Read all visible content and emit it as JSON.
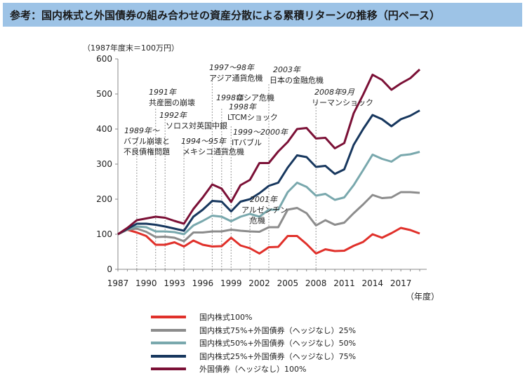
{
  "header": {
    "title": "参考：国内株式と外国債券の組み合わせの資産分散による累積リターンの推移（円ベース）"
  },
  "chart_data": {
    "type": "line",
    "title": "参考：国内株式と外国債券の組み合わせの資産分散による累積リターンの推移（円ベース）",
    "unit_note": "（1987年度末＝100万円）",
    "xlabel": "（年度）",
    "ylabel": "",
    "x": [
      1987,
      1988,
      1989,
      1990,
      1991,
      1992,
      1993,
      1994,
      1995,
      1996,
      1997,
      1998,
      1999,
      2000,
      2001,
      2002,
      2003,
      2004,
      2005,
      2006,
      2007,
      2008,
      2009,
      2010,
      2011,
      2012,
      2013,
      2014,
      2015,
      2016,
      2017,
      2018,
      2019
    ],
    "x_ticks": [
      1987,
      1990,
      1993,
      1996,
      1999,
      2002,
      2005,
      2008,
      2011,
      2014,
      2017
    ],
    "ylim": [
      0,
      600
    ],
    "y_ticks": [
      0,
      100,
      200,
      300,
      400,
      500,
      600
    ],
    "grid": "none",
    "series": [
      {
        "name": "国内株式100%",
        "color": "#e0302a",
        "values": [
          100,
          113,
          105,
          95,
          70,
          70,
          77,
          65,
          82,
          70,
          65,
          66,
          90,
          68,
          60,
          45,
          63,
          64,
          95,
          95,
          72,
          45,
          57,
          52,
          53,
          67,
          78,
          100,
          90,
          103,
          118,
          112,
          102
        ]
      },
      {
        "name": "国内株式75%+外国債券（ヘッジなし）25%",
        "color": "#8c8c8c",
        "values": [
          100,
          113,
          116,
          107,
          92,
          93,
          90,
          80,
          105,
          105,
          108,
          108,
          113,
          110,
          108,
          107,
          120,
          120,
          170,
          175,
          160,
          125,
          140,
          127,
          133,
          160,
          185,
          212,
          203,
          205,
          220,
          220,
          218
        ]
      },
      {
        "name": "国内株式50%+外国債券（ヘッジなし）50%",
        "color": "#79a8ad",
        "values": [
          100,
          115,
          122,
          120,
          108,
          108,
          106,
          100,
          125,
          138,
          153,
          150,
          137,
          150,
          158,
          150,
          170,
          170,
          220,
          247,
          235,
          210,
          215,
          198,
          205,
          240,
          283,
          327,
          315,
          307,
          325,
          328,
          335
        ]
      },
      {
        "name": "国内株式25%+外国債券（ヘッジなし）75%",
        "color": "#17375e",
        "values": [
          100,
          115,
          130,
          130,
          127,
          122,
          116,
          110,
          150,
          170,
          195,
          193,
          165,
          193,
          200,
          217,
          238,
          247,
          290,
          325,
          320,
          292,
          295,
          272,
          285,
          355,
          400,
          440,
          428,
          408,
          428,
          438,
          453
        ]
      },
      {
        "name": "外国債券（ヘッジなし）100%",
        "color": "#7b1036",
        "values": [
          100,
          118,
          140,
          145,
          150,
          147,
          138,
          130,
          172,
          205,
          242,
          230,
          192,
          240,
          255,
          303,
          303,
          336,
          363,
          400,
          403,
          373,
          375,
          345,
          360,
          445,
          498,
          555,
          540,
          512,
          530,
          545,
          570
        ]
      }
    ],
    "annotations": [
      {
        "lines": [
          "1989年～",
          "バブル崩壊と",
          "不良債権問題"
        ],
        "x": 1989
      },
      {
        "lines": [
          "1991年",
          "共産圏の崩壊"
        ],
        "x": 1991
      },
      {
        "lines": [
          "1992年",
          "ソロス対英国中銀"
        ],
        "x": 1992
      },
      {
        "lines": [
          "1994～95年",
          "メキシコ通貨危機"
        ],
        "x": 1994
      },
      {
        "lines": [
          "1997～98年",
          "アジア通貨危機"
        ],
        "x": 1997
      },
      {
        "lines": [
          "1998年",
          "ロシア危機"
        ],
        "x": 1998
      },
      {
        "lines": [
          "1998年",
          "LTCMショック"
        ],
        "x": 1998
      },
      {
        "lines": [
          "1999～2000年",
          "ITバブル"
        ],
        "x": 1999
      },
      {
        "lines": [
          "2003年",
          "日本の金融危機"
        ],
        "x": 2003
      },
      {
        "lines": [
          "2001年",
          "アルゼンチン",
          "危機"
        ],
        "x": 2001
      },
      {
        "lines": [
          "2008年9月",
          "リーマンショック"
        ],
        "x": 2008
      }
    ]
  }
}
